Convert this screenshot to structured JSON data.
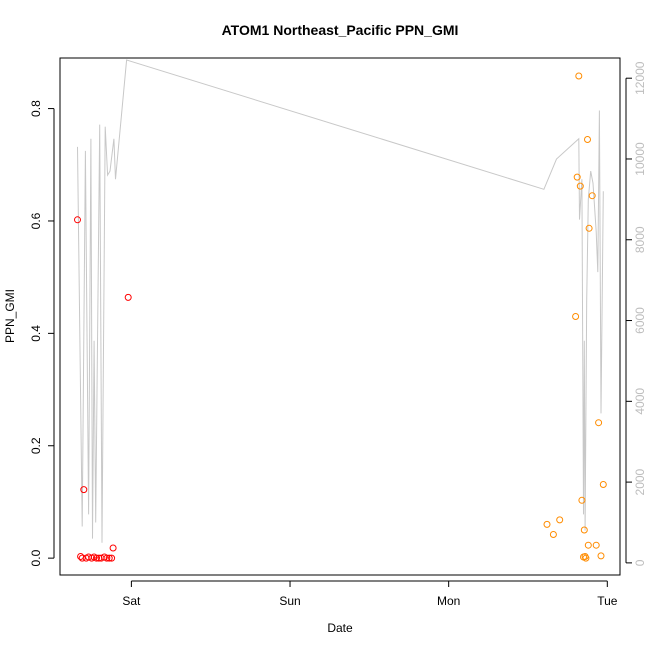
{
  "chart_data": {
    "type": "scatter",
    "title": "ATOM1 Northeast_Pacific PPN_GMI",
    "xlabel": "Date",
    "ylabel": "PPN_GMI",
    "x_ticks": [
      "Sat",
      "Sun",
      "Mon",
      "Tue"
    ],
    "x_unit": "days",
    "x_tick_values": [
      0,
      1,
      2,
      3
    ],
    "xlim": [
      -0.45,
      3.08
    ],
    "ylim": [
      -0.03,
      0.89
    ],
    "y_ticks": [
      0.0,
      0.2,
      0.4,
      0.6,
      0.8
    ],
    "y2lim": [
      -300,
      12500
    ],
    "y2_ticks": [
      0,
      2000,
      4000,
      6000,
      8000,
      10000,
      12000
    ],
    "grid": false,
    "series": [
      {
        "marker": "open-circle",
        "color": "#ff0000",
        "points": [
          {
            "x": -0.34,
            "y": 0.602
          },
          {
            "x": -0.32,
            "y": 0.003
          },
          {
            "x": -0.31,
            "y": 0.0
          },
          {
            "x": -0.3,
            "y": 0.122
          },
          {
            "x": -0.285,
            "y": 0.0
          },
          {
            "x": -0.27,
            "y": 0.002
          },
          {
            "x": -0.25,
            "y": 0.0
          },
          {
            "x": -0.235,
            "y": 0.002
          },
          {
            "x": -0.22,
            "y": 0.0
          },
          {
            "x": -0.205,
            "y": 0.0
          },
          {
            "x": -0.19,
            "y": 0.0
          },
          {
            "x": -0.17,
            "y": 0.002
          },
          {
            "x": -0.155,
            "y": 0.0
          },
          {
            "x": -0.14,
            "y": 0.0
          },
          {
            "x": -0.125,
            "y": 0.0
          },
          {
            "x": -0.115,
            "y": 0.018
          },
          {
            "x": -0.02,
            "y": 0.464
          }
        ]
      },
      {
        "marker": "open-circle",
        "color": "#ff8c00",
        "points": [
          {
            "x": 2.62,
            "y": 0.06
          },
          {
            "x": 2.66,
            "y": 0.042
          },
          {
            "x": 2.7,
            "y": 0.068
          },
          {
            "x": 2.8,
            "y": 0.43
          },
          {
            "x": 2.81,
            "y": 0.678
          },
          {
            "x": 2.82,
            "y": 0.858
          },
          {
            "x": 2.83,
            "y": 0.662
          },
          {
            "x": 2.84,
            "y": 0.103
          },
          {
            "x": 2.85,
            "y": 0.002
          },
          {
            "x": 2.855,
            "y": 0.05
          },
          {
            "x": 2.86,
            "y": 0.003
          },
          {
            "x": 2.865,
            "y": 0.0
          },
          {
            "x": 2.875,
            "y": 0.745
          },
          {
            "x": 2.88,
            "y": 0.023
          },
          {
            "x": 2.885,
            "y": 0.587
          },
          {
            "x": 2.905,
            "y": 0.645
          },
          {
            "x": 2.93,
            "y": 0.023
          },
          {
            "x": 2.945,
            "y": 0.241
          },
          {
            "x": 2.96,
            "y": 0.004
          },
          {
            "x": 2.975,
            "y": 0.131
          }
        ]
      }
    ],
    "secondary_series": {
      "type": "line",
      "axis": "right",
      "color": "#c8c8c8",
      "points": [
        {
          "x": -0.34,
          "y": 10300
        },
        {
          "x": -0.31,
          "y": 900
        },
        {
          "x": -0.29,
          "y": 10200
        },
        {
          "x": -0.27,
          "y": 1200
        },
        {
          "x": -0.255,
          "y": 10500
        },
        {
          "x": -0.245,
          "y": 600
        },
        {
          "x": -0.235,
          "y": 5500
        },
        {
          "x": -0.225,
          "y": 1000
        },
        {
          "x": -0.2,
          "y": 10850
        },
        {
          "x": -0.185,
          "y": 500
        },
        {
          "x": -0.165,
          "y": 10800
        },
        {
          "x": -0.15,
          "y": 9600
        },
        {
          "x": -0.135,
          "y": 9700
        },
        {
          "x": -0.11,
          "y": 10500
        },
        {
          "x": -0.1,
          "y": 9500
        },
        {
          "x": -0.03,
          "y": 12450
        },
        {
          "x": 2.6,
          "y": 9250
        },
        {
          "x": 2.68,
          "y": 10000
        },
        {
          "x": 2.82,
          "y": 10500
        },
        {
          "x": 2.825,
          "y": 8500
        },
        {
          "x": 2.84,
          "y": 9500
        },
        {
          "x": 2.85,
          "y": 1200
        },
        {
          "x": 2.855,
          "y": 5500
        },
        {
          "x": 2.86,
          "y": 800
        },
        {
          "x": 2.87,
          "y": 6500
        },
        {
          "x": 2.88,
          "y": 9000
        },
        {
          "x": 2.895,
          "y": 9700
        },
        {
          "x": 2.91,
          "y": 9400
        },
        {
          "x": 2.93,
          "y": 8200
        },
        {
          "x": 2.94,
          "y": 7200
        },
        {
          "x": 2.95,
          "y": 11200
        },
        {
          "x": 2.96,
          "y": 3700
        },
        {
          "x": 2.975,
          "y": 9200
        }
      ]
    }
  }
}
